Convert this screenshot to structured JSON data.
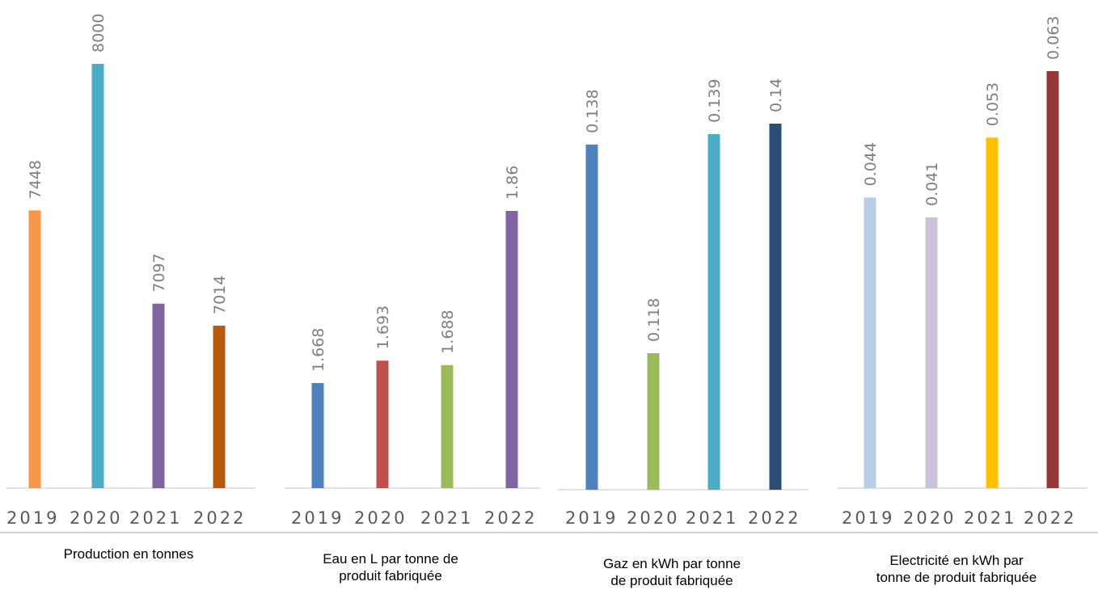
{
  "chart_data": [
    {
      "type": "bar",
      "title": "Production en tonnes",
      "categories": [
        "2019",
        "2020",
        "2021",
        "2022"
      ],
      "values": [
        7448,
        8000,
        7097,
        7014
      ],
      "value_labels": [
        "7448",
        "8000",
        "7097",
        "7014"
      ],
      "colors": [
        "#f79646",
        "#4bacc6",
        "#8064a2",
        "#b85a0e"
      ]
    },
    {
      "type": "bar",
      "title": "Eau en L par tonne de produit fabriquée",
      "categories": [
        "2019",
        "2020",
        "2021",
        "2022"
      ],
      "values": [
        1.668,
        1.693,
        1.688,
        1.86
      ],
      "value_labels": [
        "1.668",
        "1.693",
        "1.688",
        "1.86"
      ],
      "colors": [
        "#4f81bd",
        "#c0504d",
        "#9bbb59",
        "#8064a2"
      ]
    },
    {
      "type": "bar",
      "title": "Gaz en kWh par tonne de produit fabriquée",
      "categories": [
        "2019",
        "2020",
        "2021",
        "2022"
      ],
      "values": [
        0.138,
        0.118,
        0.139,
        0.14
      ],
      "value_labels": [
        "0.138",
        "0.118",
        "0.139",
        "0.14"
      ],
      "colors": [
        "#4f81bd",
        "#9bbb59",
        "#4bacc6",
        "#2c4d75"
      ]
    },
    {
      "type": "bar",
      "title": "Electricité en kWh par tonne de produit fabriquée",
      "categories": [
        "2019",
        "2020",
        "2021",
        "2022"
      ],
      "values": [
        0.044,
        0.041,
        0.053,
        0.063
      ],
      "value_labels": [
        "0.044",
        "0.041",
        "0.053",
        "0.063"
      ],
      "colors": [
        "#b9cde5",
        "#ccc1da",
        "#ffc000",
        "#953735"
      ]
    }
  ],
  "captions": [
    [
      "Production en tonnes"
    ],
    [
      "Eau en L par tonne de",
      "produit fabriquée"
    ],
    [
      "Gaz en kWh par tonne",
      "de produit fabriquée"
    ],
    [
      "Electricité en kWh par",
      "tonne de produit fabriquée"
    ]
  ]
}
